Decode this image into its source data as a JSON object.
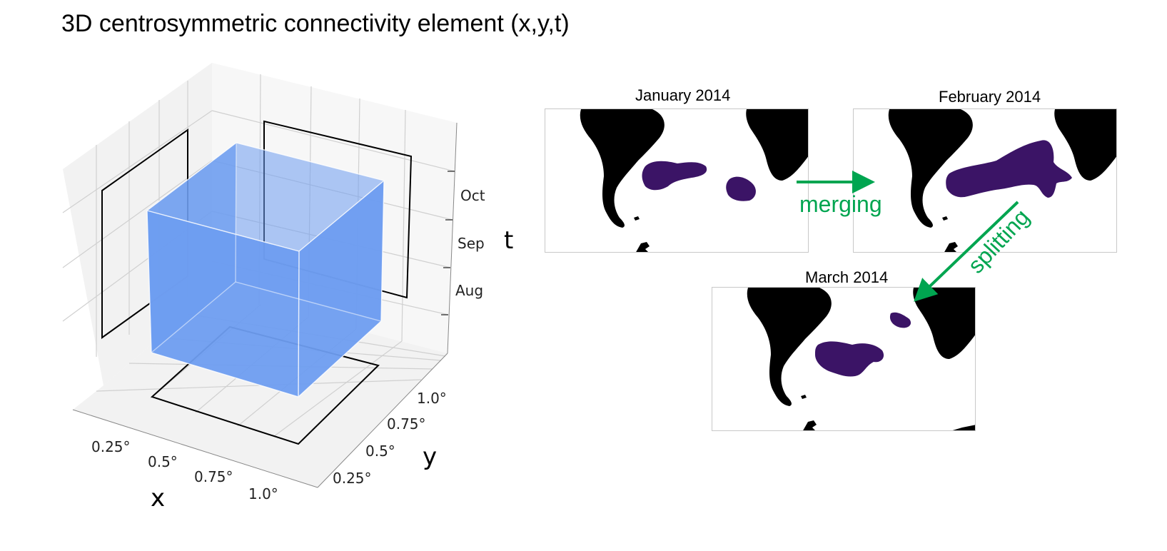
{
  "title": "3D centrosymmetric connectivity element (x,y,t)",
  "cube_plot": {
    "x_label": "x",
    "y_label": "y",
    "t_label": "t",
    "x_ticks": [
      "0.25°",
      "0.5°",
      "0.75°",
      "1.0°"
    ],
    "y_ticks": [
      "0.25°",
      "0.5°",
      "0.75°",
      "1.0°"
    ],
    "t_ticks": [
      "Aug",
      "Sep",
      "Oct"
    ],
    "cube_color": "#6e9df0",
    "pane_color": "#f2f2f2",
    "grid_color": "#d0d0d0",
    "projection_color": "#000000"
  },
  "maps": [
    {
      "title": "January 2014"
    },
    {
      "title": "February 2014"
    },
    {
      "title": "March 2014"
    }
  ],
  "land_color": "#000000",
  "blob_color": "#3b1466",
  "arrows": {
    "merging": "merging",
    "splitting": "splitting",
    "color": "#00a550"
  }
}
